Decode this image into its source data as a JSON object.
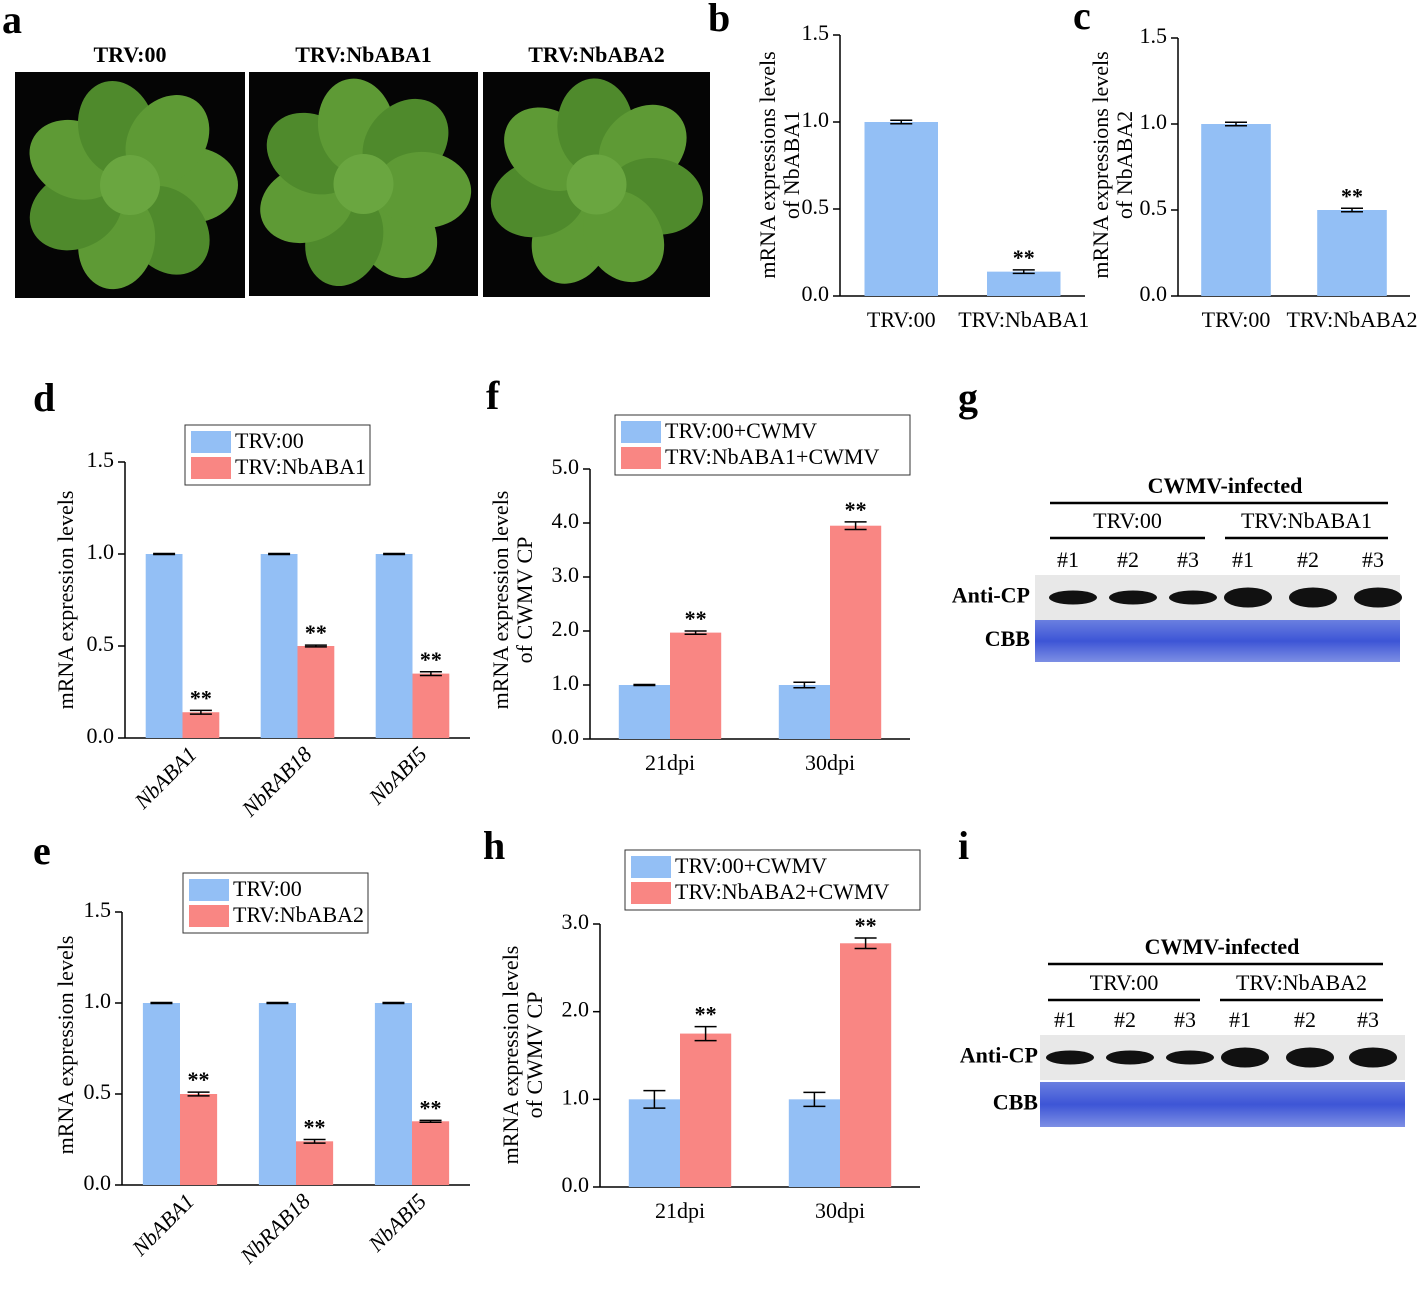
{
  "photos": {
    "label": "a",
    "titles": [
      "TRV:00",
      "TRV:NbABA1",
      "TRV:NbABA2"
    ]
  },
  "chart_data": [
    {
      "label": "b",
      "type": "bar",
      "categories": [
        "TRV:00",
        "TRV:NbABA1"
      ],
      "ylabel": [
        "mRNA  expressions levels",
        "of  NbABA1"
      ],
      "ylim": [
        0,
        1.5
      ],
      "yticks": [
        {
          "value": 0,
          "label": "0.0"
        },
        {
          "value": 0.5,
          "label": "0.5"
        },
        {
          "value": 1,
          "label": "1.0"
        },
        1.5
      ],
      "series": [
        {
          "color": "#93bff5",
          "values": [
            1.0,
            0.14
          ],
          "errors": [
            0.01,
            0.01
          ],
          "significance": [
            null,
            "**"
          ]
        }
      ]
    },
    {
      "label": "c",
      "type": "bar",
      "categories": [
        "TRV:00",
        "TRV:NbABA2"
      ],
      "ylabel": [
        "mRNA  expressions levels",
        "of  NbABA2"
      ],
      "ylim": [
        0,
        1.5
      ],
      "yticks": [
        {
          "value": 0,
          "label": "0.0"
        },
        {
          "value": 0.5,
          "label": "0.5"
        },
        {
          "value": 1,
          "label": "1.0"
        },
        1.5
      ],
      "series": [
        {
          "color": "#93bff5",
          "values": [
            1.0,
            0.5
          ],
          "errors": [
            0.01,
            0.01
          ],
          "significance": [
            null,
            "**"
          ]
        }
      ]
    },
    {
      "label": "d",
      "type": "bar",
      "categories": [
        "NbABA1",
        "NbRAB18",
        "NbABI5"
      ],
      "xtick_rotation": 45,
      "legend": true,
      "ylabel": [
        "mRNA expression levels"
      ],
      "ylim": [
        0,
        1.5
      ],
      "yticks": [
        {
          "value": 0,
          "label": "0.0"
        },
        {
          "value": 0.5,
          "label": "0.5"
        },
        {
          "value": 1,
          "label": "1.0"
        },
        1.5
      ],
      "series": [
        {
          "name": "TRV:00",
          "color": "#93bff5",
          "values": [
            1.0,
            1.0,
            1.0
          ],
          "errors": [
            0.003,
            0.003,
            0.003
          ],
          "significance": [
            null,
            null,
            null
          ]
        },
        {
          "name": "TRV:NbABA1",
          "color": "#f98683",
          "values": [
            0.14,
            0.5,
            0.35
          ],
          "errors": [
            0.01,
            0.005,
            0.01
          ],
          "significance": [
            "**",
            "**",
            "**"
          ]
        }
      ]
    },
    {
      "label": "e",
      "type": "bar",
      "categories": [
        "NbABA1",
        "NbRAB18",
        "NbABI5"
      ],
      "xtick_rotation": 45,
      "legend": true,
      "ylabel": [
        "mRNA expression levels"
      ],
      "ylim": [
        0,
        1.5
      ],
      "yticks": [
        {
          "value": 0,
          "label": "0.0"
        },
        {
          "value": 0.5,
          "label": "0.5"
        },
        {
          "value": 1,
          "label": "1.0"
        },
        1.5
      ],
      "series": [
        {
          "name": "TRV:00",
          "color": "#93bff5",
          "values": [
            1.0,
            1.0,
            1.0
          ],
          "errors": [
            0.003,
            0.003,
            0.003
          ],
          "significance": [
            null,
            null,
            null
          ]
        },
        {
          "name": "TRV:NbABA2",
          "color": "#f98683",
          "values": [
            0.5,
            0.24,
            0.35
          ],
          "errors": [
            0.01,
            0.01,
            0.005
          ],
          "significance": [
            "**",
            "**",
            "**"
          ]
        }
      ]
    },
    {
      "label": "f",
      "type": "bar",
      "categories": [
        "21dpi",
        "30dpi"
      ],
      "legend": true,
      "ylabel": [
        "mRNA expression levels",
        "of CWMV CP"
      ],
      "ylim": [
        0,
        5
      ],
      "yticks": [
        {
          "value": 0,
          "label": "0.0"
        },
        {
          "value": 1,
          "label": "1.0"
        },
        {
          "value": 2,
          "label": "2.0"
        },
        {
          "value": 3,
          "label": "3.0"
        },
        {
          "value": 4,
          "label": "4.0"
        },
        {
          "value": 5,
          "label": "5.0"
        }
      ],
      "series": [
        {
          "name": "TRV:00+CWMV",
          "color": "#93bff5",
          "values": [
            1.0,
            1.0
          ],
          "errors": [
            0.01,
            0.05
          ],
          "significance": [
            null,
            null
          ]
        },
        {
          "name": "TRV:NbABA1+CWMV",
          "color": "#f98683",
          "values": [
            1.97,
            3.95
          ],
          "errors": [
            0.03,
            0.07
          ],
          "significance": [
            "**",
            "**"
          ]
        }
      ]
    },
    {
      "label": "h",
      "type": "bar",
      "categories": [
        "21dpi",
        "30dpi"
      ],
      "legend": true,
      "ylabel": [
        "mRNA expression levels",
        "of CWMV CP"
      ],
      "ylim": [
        0,
        3
      ],
      "yticks": [
        {
          "value": 0,
          "label": "0.0"
        },
        {
          "value": 1,
          "label": "1.0"
        },
        {
          "value": 2,
          "label": "2.0"
        },
        {
          "value": 3,
          "label": "3.0"
        }
      ],
      "series": [
        {
          "name": "TRV:00+CWMV",
          "color": "#93bff5",
          "values": [
            1.0,
            1.0
          ],
          "errors": [
            0.1,
            0.08
          ],
          "significance": [
            null,
            null
          ]
        },
        {
          "name": "TRV:NbABA2+CWMV",
          "color": "#f98683",
          "values": [
            1.75,
            2.78
          ],
          "errors": [
            0.08,
            0.06
          ],
          "significance": [
            "**",
            "**"
          ]
        }
      ]
    }
  ],
  "blots": [
    {
      "label": "g",
      "title": "CWMV-infected",
      "groups": [
        "TRV:00",
        "TRV:NbABA1"
      ],
      "lanes": [
        "#1",
        "#2",
        "#3",
        "#1",
        "#2",
        "#3"
      ],
      "rows": [
        "Anti-CP",
        "CBB"
      ]
    },
    {
      "label": "i",
      "title": "CWMV-infected",
      "groups": [
        "TRV:00",
        "TRV:NbABA2"
      ],
      "lanes": [
        "#1",
        "#2",
        "#3",
        "#1",
        "#2",
        "#3"
      ],
      "rows": [
        "Anti-CP",
        "CBB"
      ]
    }
  ]
}
